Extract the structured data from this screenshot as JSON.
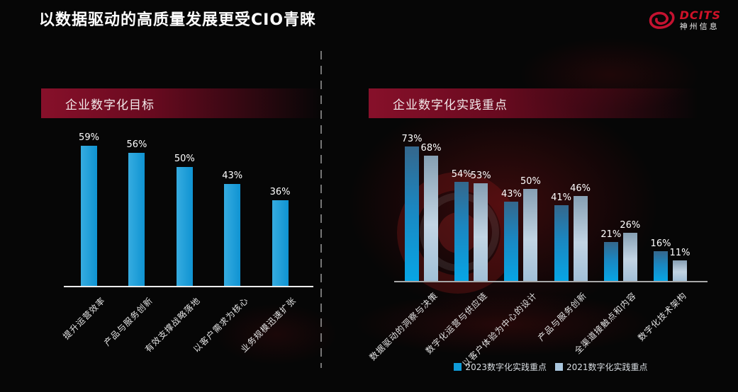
{
  "page": {
    "title": "以数据驱动的高质量发展更受CIO青睐",
    "background_color": "#060606",
    "accent_red": "#87102a"
  },
  "logo": {
    "brand": "DCITS",
    "company": "神州信息",
    "brand_color": "#cf1228"
  },
  "chart_data": [
    {
      "type": "bar",
      "title": "企业数字化目标",
      "categories": [
        "提升运营效率",
        "产品与服务创新",
        "有效支撑战略落地",
        "以客户需求为核心",
        "业务规模迅速扩张"
      ],
      "values": [
        59,
        56,
        50,
        43,
        36
      ],
      "unit": "%",
      "xlabel": "",
      "ylabel": "",
      "ylim": [
        0,
        65
      ],
      "grid": false,
      "data_labels": true,
      "bar_color": "#18a0dc",
      "axis_color": "#ececec",
      "label_color": "#ffffff"
    },
    {
      "type": "bar",
      "title": "企业数字化实践重点",
      "categories": [
        "数据驱动的洞察与决策",
        "数字化运营与供应链",
        "以客户体验为中心的设计",
        "产品与服务创新",
        "全渠道接触点和内容",
        "数字化技术架构"
      ],
      "series": [
        {
          "name": "2023数字化实践重点",
          "color": "#0f9bd8",
          "values": [
            73,
            54,
            43,
            41,
            21,
            16
          ]
        },
        {
          "name": "2021数字化实践重点",
          "color": "#a9c6dd",
          "values": [
            68,
            53,
            50,
            46,
            26,
            11
          ]
        }
      ],
      "unit": "%",
      "xlabel": "",
      "ylabel": "",
      "ylim": [
        0,
        80
      ],
      "grid": false,
      "data_labels": true,
      "legend_position": "bottom",
      "axis_color": "#a8a8a8",
      "label_color": "#ffffff"
    }
  ]
}
